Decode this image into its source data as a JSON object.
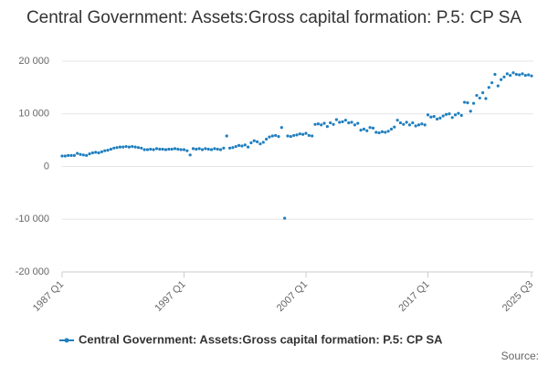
{
  "chart_data": {
    "type": "line",
    "title": "Central Government: Assets:Gross capital formation: P.5: CP SA",
    "source_label": "Source:",
    "categories": [
      "1987 Q1",
      null,
      null,
      null,
      null,
      null,
      null,
      null,
      null,
      null,
      null,
      null,
      null,
      null,
      null,
      null,
      null,
      null,
      null,
      null,
      null,
      null,
      null,
      null,
      null,
      null,
      null,
      null,
      null,
      null,
      null,
      null,
      null,
      null,
      null,
      null,
      null,
      null,
      null,
      null,
      "1997 Q1",
      null,
      null,
      null,
      null,
      null,
      null,
      null,
      null,
      null,
      null,
      null,
      null,
      null,
      null,
      null,
      null,
      null,
      null,
      null,
      null,
      null,
      null,
      null,
      null,
      null,
      null,
      null,
      null,
      null,
      null,
      null,
      null,
      null,
      null,
      null,
      null,
      null,
      null,
      null,
      "2007 Q1",
      null,
      null,
      null,
      null,
      null,
      null,
      null,
      null,
      null,
      null,
      null,
      null,
      null,
      null,
      null,
      null,
      null,
      null,
      null,
      null,
      null,
      null,
      null,
      null,
      null,
      null,
      null,
      null,
      null,
      null,
      null,
      null,
      null,
      null,
      null,
      null,
      null,
      null,
      null,
      "2017 Q1",
      null,
      null,
      null,
      null,
      null,
      null,
      null,
      null,
      null,
      null,
      null,
      null,
      null,
      null,
      null,
      null,
      null,
      null,
      null,
      null,
      null,
      null,
      null,
      null,
      null,
      null,
      null,
      null,
      null,
      null,
      null,
      null,
      null,
      "2025 Q3"
    ],
    "series": [
      {
        "name": "Central Government: Assets:Gross capital formation: P.5: CP SA",
        "color": "#1f7fbf",
        "values": [
          2000,
          2000,
          2100,
          2100,
          2100,
          2500,
          2300,
          2200,
          2100,
          2400,
          2600,
          2700,
          2600,
          2800,
          3000,
          3100,
          3300,
          3500,
          3600,
          3700,
          3700,
          3800,
          3700,
          3800,
          3700,
          3600,
          3500,
          3200,
          3200,
          3300,
          3200,
          3400,
          3300,
          3300,
          3200,
          3300,
          3300,
          3400,
          3300,
          3200,
          3200,
          3000,
          2200,
          3400,
          3300,
          3400,
          3200,
          3400,
          3300,
          3200,
          3400,
          3300,
          3200,
          3500,
          5800,
          3500,
          3600,
          3800,
          4000,
          3900,
          4100,
          3700,
          4500,
          4900,
          4700,
          4300,
          4600,
          5200,
          5600,
          5800,
          5900,
          5700,
          7400,
          -9800,
          5800,
          5700,
          5900,
          6000,
          6200,
          6100,
          6300,
          5900,
          5800,
          8000,
          8100,
          7900,
          8200,
          7600,
          8300,
          8000,
          8900,
          8400,
          8500,
          8800,
          8300,
          8400,
          7900,
          8200,
          6900,
          7100,
          6800,
          7400,
          7300,
          6500,
          6400,
          6600,
          6500,
          6700,
          7100,
          7500,
          8800,
          8300,
          8000,
          8400,
          7900,
          8300,
          7700,
          7900,
          8100,
          7900,
          9800,
          9400,
          9500,
          9000,
          9200,
          9600,
          9900,
          10000,
          9300,
          9800,
          10100,
          9700,
          12200,
          12100,
          10500,
          12000,
          13500,
          13000,
          14000,
          12900,
          15000,
          15900,
          17500,
          15300,
          16500,
          17000,
          17600,
          17300,
          17800,
          17500,
          17400,
          17600,
          17300,
          17400,
          17200
        ]
      }
    ],
    "ylim": [
      -20000,
      20000
    ],
    "yticks": [
      {
        "value": -20000,
        "label": "-20 000"
      },
      {
        "value": -10000,
        "label": "-10 000"
      },
      0,
      {
        "value": 10000,
        "label": "10 000"
      },
      {
        "value": 20000,
        "label": "20 000"
      }
    ],
    "grid": true,
    "legend": "bottom"
  }
}
